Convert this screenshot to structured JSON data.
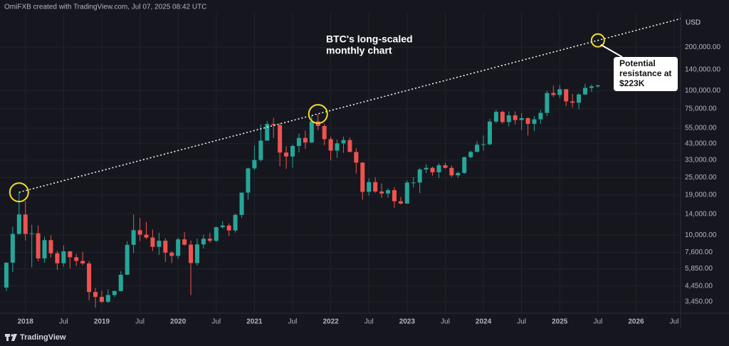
{
  "chart_data": {
    "type": "candlestick",
    "source": "OmiFXB created with TradingView.com, Jul 07, 2025 08:42 UTC",
    "brand": "TradingView",
    "currency": "USD",
    "annotation": [
      "BTC's long-scaled",
      "monthly chart"
    ],
    "callout": [
      "Potential",
      "resistance at",
      "$223K"
    ],
    "log_scale": true,
    "grid": true,
    "up_color": "#26a69a",
    "down_color": "#ef5350",
    "x": [
      "2017-10",
      "2017-11",
      "2017-12",
      "2018-01",
      "2018-02",
      "2018-03",
      "2018-04",
      "2018-05",
      "2018-06",
      "2018-07",
      "2018-08",
      "2018-09",
      "2018-10",
      "2018-11",
      "2018-12",
      "2019-01",
      "2019-02",
      "2019-03",
      "2019-04",
      "2019-05",
      "2019-06",
      "2019-07",
      "2019-08",
      "2019-09",
      "2019-10",
      "2019-11",
      "2019-12",
      "2020-01",
      "2020-02",
      "2020-03",
      "2020-04",
      "2020-05",
      "2020-06",
      "2020-07",
      "2020-08",
      "2020-09",
      "2020-10",
      "2020-11",
      "2020-12",
      "2021-01",
      "2021-02",
      "2021-03",
      "2021-04",
      "2021-05",
      "2021-06",
      "2021-07",
      "2021-08",
      "2021-09",
      "2021-10",
      "2021-11",
      "2021-12",
      "2022-01",
      "2022-02",
      "2022-03",
      "2022-04",
      "2022-05",
      "2022-06",
      "2022-07",
      "2022-08",
      "2022-09",
      "2022-10",
      "2022-11",
      "2022-12",
      "2023-01",
      "2023-02",
      "2023-03",
      "2023-04",
      "2023-05",
      "2023-06",
      "2023-07",
      "2023-08",
      "2023-09",
      "2023-10",
      "2023-11",
      "2023-12",
      "2024-01",
      "2024-02",
      "2024-03",
      "2024-04",
      "2024-05",
      "2024-06",
      "2024-07",
      "2024-08",
      "2024-09",
      "2024-10",
      "2024-11",
      "2024-12",
      "2025-01",
      "2025-02",
      "2025-03",
      "2025-04",
      "2025-05",
      "2025-06",
      "2025-07"
    ],
    "open": [
      4340,
      6450,
      10200,
      13900,
      10200,
      10300,
      6900,
      9240,
      7490,
      6390,
      7730,
      7030,
      6630,
      6370,
      4040,
      3740,
      3460,
      3850,
      4100,
      5320,
      8570,
      10820,
      10080,
      9630,
      8300,
      9150,
      7570,
      7190,
      9350,
      8600,
      6410,
      8630,
      9450,
      9140,
      11350,
      11650,
      10780,
      13800,
      19700,
      28990,
      33140,
      45140,
      58800,
      57720,
      37300,
      35040,
      41460,
      47100,
      43820,
      61300,
      56950,
      46200,
      38480,
      43190,
      45540,
      37630,
      31790,
      19940,
      23300,
      20050,
      19430,
      20490,
      17170,
      16540,
      23130,
      23150,
      28470,
      29250,
      27220,
      30480,
      29230,
      25940,
      26970,
      34660,
      37720,
      42280,
      42580,
      61130,
      71330,
      60640,
      67500,
      62680,
      64630,
      58970,
      63330,
      70210,
      96400,
      93430,
      102400,
      84370,
      82550,
      94200,
      104600,
      107200
    ],
    "high": [
      6470,
      11400,
      19800,
      17200,
      11800,
      11700,
      9750,
      10000,
      7780,
      8500,
      7760,
      7410,
      7680,
      6620,
      4310,
      4110,
      4210,
      4140,
      5630,
      9070,
      13880,
      13130,
      12330,
      10920,
      10400,
      9520,
      7750,
      9600,
      10500,
      9190,
      9470,
      10070,
      10380,
      11450,
      12470,
      12080,
      14100,
      19750,
      29300,
      41950,
      58350,
      61780,
      64850,
      59500,
      41300,
      42300,
      50500,
      52900,
      67000,
      69000,
      59100,
      47990,
      45800,
      48200,
      47450,
      40000,
      31990,
      24670,
      25200,
      22800,
      21100,
      21450,
      18390,
      23950,
      25250,
      29200,
      31000,
      29820,
      31430,
      31800,
      30230,
      27490,
      35000,
      38450,
      44700,
      48970,
      63900,
      73800,
      72780,
      71950,
      71960,
      70000,
      65100,
      66500,
      73600,
      99800,
      108300,
      109600,
      102750,
      95000,
      95750,
      111900,
      110500,
      109700
    ],
    "low": [
      4110,
      5550,
      10100,
      9200,
      6000,
      6600,
      6450,
      7000,
      5750,
      6070,
      5880,
      6120,
      6180,
      3550,
      3150,
      3400,
      3390,
      3730,
      4080,
      5330,
      7510,
      9100,
      9400,
      7760,
      7300,
      6520,
      6430,
      6870,
      8450,
      3850,
      6150,
      8100,
      8880,
      8980,
      11100,
      9880,
      10400,
      13200,
      17600,
      28130,
      32300,
      45000,
      47000,
      30000,
      28800,
      29300,
      37330,
      39600,
      43300,
      53250,
      42000,
      32900,
      34300,
      37150,
      37700,
      26700,
      17620,
      18780,
      19600,
      18150,
      18200,
      15480,
      16300,
      16500,
      21400,
      19570,
      26940,
      25810,
      24800,
      28860,
      25160,
      24900,
      26560,
      34100,
      37620,
      38500,
      41880,
      59300,
      59100,
      56500,
      58400,
      53500,
      49000,
      52550,
      58900,
      66800,
      90500,
      89200,
      78200,
      76600,
      74400,
      93400,
      98200,
      105100
    ],
    "close": [
      6450,
      10200,
      13900,
      10200,
      10300,
      6900,
      9240,
      7490,
      6390,
      7730,
      7030,
      6630,
      6370,
      4040,
      3740,
      3460,
      3850,
      4100,
      5320,
      8570,
      10820,
      10080,
      9630,
      8300,
      9150,
      7570,
      7190,
      9350,
      8600,
      6410,
      8630,
      9450,
      9140,
      11350,
      11650,
      10780,
      13800,
      19700,
      28990,
      33140,
      45140,
      58800,
      57720,
      37300,
      35040,
      41460,
      47100,
      43820,
      61300,
      56950,
      46200,
      38480,
      43190,
      45540,
      37630,
      31790,
      19940,
      23300,
      20050,
      19430,
      20490,
      17170,
      16540,
      23130,
      23150,
      28470,
      29250,
      27220,
      30480,
      29230,
      25940,
      26970,
      34660,
      37720,
      42280,
      42580,
      61130,
      71330,
      60640,
      67500,
      62680,
      64630,
      58970,
      63330,
      70210,
      96400,
      93430,
      102400,
      84370,
      82550,
      94200,
      104600,
      107200,
      108900
    ],
    "highlights": [
      {
        "x": "2017-12",
        "y": 19800
      },
      {
        "x": "2021-11",
        "y": 69000
      },
      {
        "x": "2025-07",
        "y": 223000
      }
    ],
    "xlim": [
      "2017-09",
      "2026-08"
    ],
    "xticks": [
      {
        "value": "2018-01",
        "label": "2018"
      },
      {
        "value": "2018-07",
        "label": "Jul"
      },
      {
        "value": "2019-01",
        "label": "2019"
      },
      {
        "value": "2019-07",
        "label": "Jul"
      },
      {
        "value": "2020-01",
        "label": "2020"
      },
      {
        "value": "2020-07",
        "label": "Jul"
      },
      {
        "value": "2021-01",
        "label": "2021"
      },
      {
        "value": "2021-07",
        "label": "Jul"
      },
      {
        "value": "2022-01",
        "label": "2022"
      },
      {
        "value": "2022-07",
        "label": "Jul"
      },
      {
        "value": "2023-01",
        "label": "2023"
      },
      {
        "value": "2023-07",
        "label": "Jul"
      },
      {
        "value": "2024-01",
        "label": "2024"
      },
      {
        "value": "2024-07",
        "label": "Jul"
      },
      {
        "value": "2025-01",
        "label": "2025"
      },
      {
        "value": "2025-07",
        "label": "Jul"
      },
      {
        "value": "2026-01",
        "label": "2026"
      },
      {
        "value": "2026-07",
        "label": "Jul"
      }
    ],
    "ylim": [
      2880,
      346000
    ],
    "yticks": [
      {
        "value": 3450,
        "label": "3,450.00"
      },
      {
        "value": 4450,
        "label": "4,450.00"
      },
      {
        "value": 5850,
        "label": "5,850.00"
      },
      {
        "value": 7600,
        "label": "7,600.00"
      },
      {
        "value": 10000,
        "label": "10,000.00"
      },
      {
        "value": 14000,
        "label": "14,000.00"
      },
      {
        "value": 19000,
        "label": "19,000.00"
      },
      {
        "value": 25000,
        "label": "25,000.00"
      },
      {
        "value": 33000,
        "label": "33,000.00"
      },
      {
        "value": 43000,
        "label": "43,000.00"
      },
      {
        "value": 55000,
        "label": "55,000.00"
      },
      {
        "value": 75000,
        "label": "75,000.00"
      },
      {
        "value": 100000,
        "label": "100,000.00"
      },
      {
        "value": 140000,
        "label": "140,000.00"
      },
      {
        "value": 200000,
        "label": "200,000.00"
      }
    ]
  }
}
